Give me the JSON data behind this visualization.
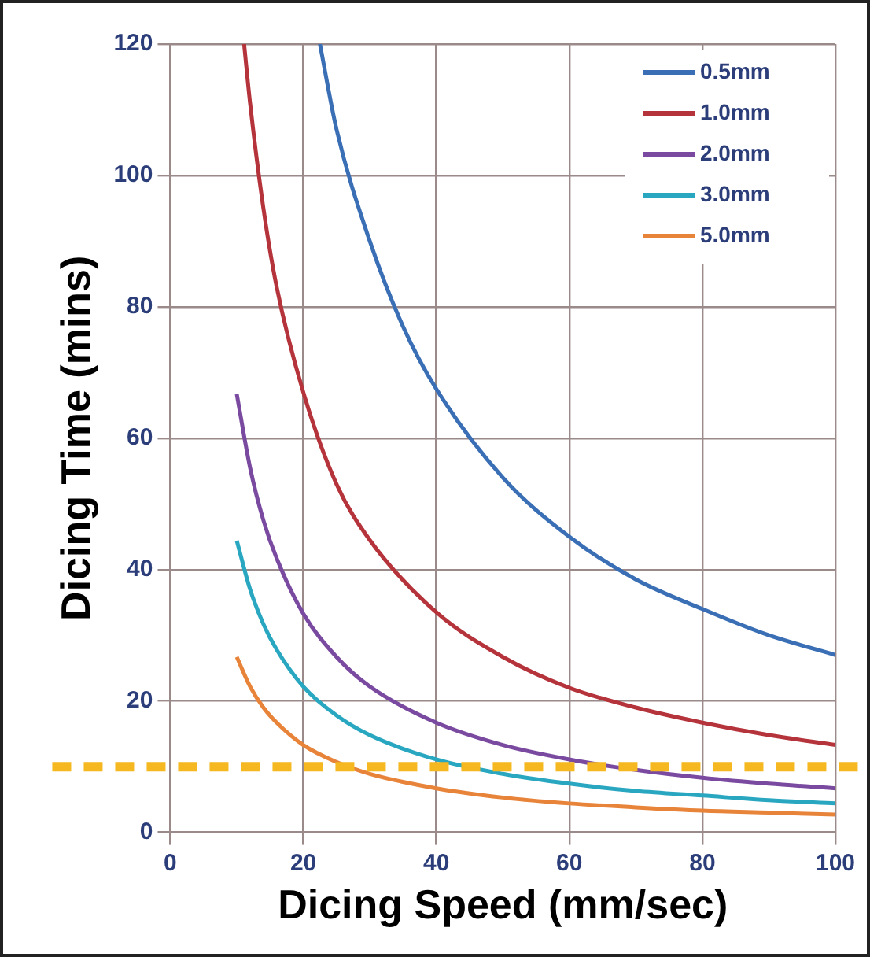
{
  "chart_data": {
    "type": "line",
    "xlabel": "Dicing Speed (mm/sec)",
    "ylabel": "Dicing Time (mins)",
    "xlim": [
      0,
      100
    ],
    "xticks": [
      0,
      20,
      40,
      60,
      80,
      100
    ],
    "ylim": [
      0,
      120
    ],
    "yticks": [
      0,
      20,
      40,
      60,
      80,
      100,
      120
    ],
    "grid": true,
    "legend": "top right",
    "marker": "none",
    "line_style": "solid",
    "series": [
      {
        "name": "0.5mm",
        "color": "#3a6fb5",
        "x": [
          22.5,
          25,
          30,
          35,
          40,
          50,
          60,
          70,
          80,
          90,
          100
        ],
        "values": [
          120,
          107,
          90,
          77,
          67.5,
          54,
          45,
          38.5,
          34,
          30,
          27
        ]
      },
      {
        "name": "1.0mm",
        "color": "#b5333a",
        "x": [
          11.1,
          12,
          14,
          16,
          20,
          25,
          30,
          40,
          50,
          60,
          70,
          80,
          90,
          100
        ],
        "values": [
          120,
          111,
          95,
          83,
          67,
          53,
          44.5,
          33.5,
          26.7,
          22,
          19,
          16.7,
          14.8,
          13.3
        ]
      },
      {
        "name": "2.0mm",
        "color": "#7a4aa0",
        "x": [
          10,
          12,
          14,
          16,
          20,
          25,
          30,
          40,
          50,
          60,
          70,
          80,
          90,
          100
        ],
        "values": [
          66.7,
          55.5,
          47.5,
          41.7,
          33.3,
          26.7,
          22.2,
          16.7,
          13.3,
          11.1,
          9.5,
          8.3,
          7.4,
          6.7
        ]
      },
      {
        "name": "3.0mm",
        "color": "#2aa7c0",
        "x": [
          10,
          12,
          14,
          16,
          20,
          25,
          30,
          40,
          50,
          60,
          70,
          80,
          90,
          100
        ],
        "values": [
          44.4,
          37,
          31.7,
          27.8,
          22.2,
          17.8,
          14.8,
          11.1,
          8.9,
          7.4,
          6.3,
          5.6,
          4.9,
          4.4
        ]
      },
      {
        "name": "5.0mm",
        "color": "#e8843a",
        "x": [
          10,
          12,
          14,
          16,
          20,
          25,
          30,
          40,
          50,
          60,
          70,
          80,
          90,
          100
        ],
        "values": [
          26.7,
          22.2,
          19,
          16.7,
          13.3,
          10.7,
          8.9,
          6.7,
          5.3,
          4.4,
          3.8,
          3.3,
          3,
          2.7
        ]
      }
    ],
    "ref_lines": [
      {
        "axis": "y",
        "value": 10,
        "color": "#f5b820",
        "line_style": "dashed"
      }
    ]
  }
}
